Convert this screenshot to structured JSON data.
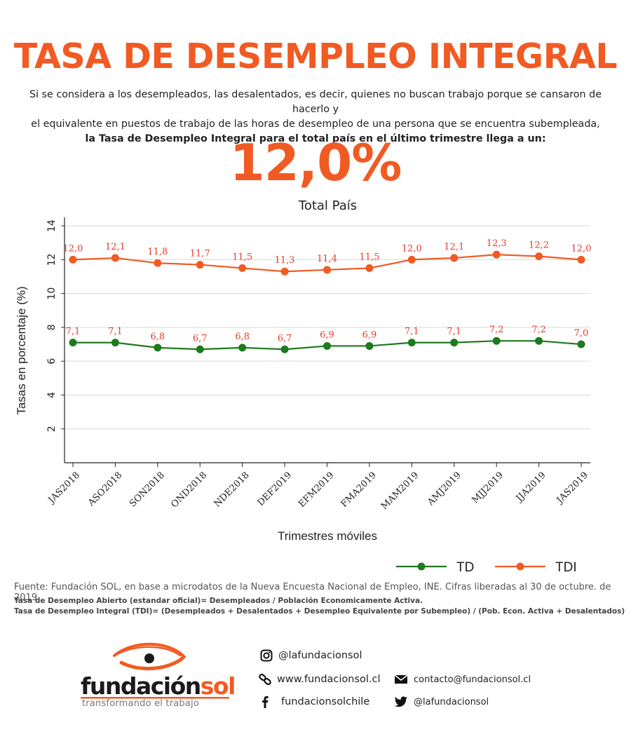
{
  "header": {
    "title": "TASA DE DESEMPLEO INTEGRAL",
    "intro_line1": "Si se considera a los desempleados, las desalentados, es decir, quienes no buscan trabajo porque se cansaron de hacerlo y",
    "intro_line2": "el equivalente en puestos  de trabajo de las horas de desempleo de una persona que se encuentra subempleada,",
    "intro_line3": "la Tasa de Desempleo Integral para el  total país en el último trimestre llega a un:",
    "big_value": "12,0%"
  },
  "chart_data": {
    "type": "line",
    "title": "Total País",
    "xlabel": "Trimestres móviles",
    "ylabel": "Tasas en porcentaje (%)",
    "ylim": [
      0,
      14.5
    ],
    "yticks": [
      2,
      4,
      6,
      8,
      10,
      12,
      14
    ],
    "grid": true,
    "legend_position": "bottom-right",
    "categories": [
      "JAS2018",
      "ASO2018",
      "SON2018",
      "OND2018",
      "NDE2018",
      "DEF2019",
      "EFM2019",
      "FMA2019",
      "MAM2019",
      "AMJ2019",
      "MJJ2019",
      "JJA2019",
      "JAS2019"
    ],
    "series": [
      {
        "name": "TD",
        "color": "#1e7a1e",
        "values": [
          7.1,
          7.1,
          6.8,
          6.7,
          6.8,
          6.7,
          6.9,
          6.9,
          7.1,
          7.1,
          7.2,
          7.2,
          7.0
        ],
        "labels": [
          "7,1",
          "7,1",
          "6,8",
          "6,7",
          "6,8",
          "6,7",
          "6,9",
          "6,9",
          "7,1",
          "7,1",
          "7,2",
          "7,2",
          "7,0"
        ]
      },
      {
        "name": "TDI",
        "color": "#f15a22",
        "values": [
          12.0,
          12.1,
          11.8,
          11.7,
          11.5,
          11.3,
          11.4,
          11.5,
          12.0,
          12.1,
          12.3,
          12.2,
          12.0
        ],
        "labels": [
          "12,0",
          "12,1",
          "11,8",
          "11,7",
          "11,5",
          "11,3",
          "11,4",
          "11,5",
          "12,0",
          "12,1",
          "12,3",
          "12,2",
          "12,0"
        ]
      }
    ],
    "data_label_color": "#e8372c"
  },
  "footer": {
    "source": "Fuente: Fundación SOL, en base a microdatos de la Nueva Encuesta Nacional de Empleo, INE. Cifras liberadas al 30 de octubre. de 2019.",
    "note1": "Tasa de Desempleo Abierto (estandar oficial)= Desempleados / Población Economicamente Activa.",
    "note2": "Tasa de Desempleo Integral (TDI)= (Desempleados + Desalentados + Desempleo Equivalente por Subempleo) / (Pob. Econ. Activa + Desalentados)"
  },
  "brand": {
    "name_part1": "fundación",
    "name_part2": "sol",
    "tagline": "transformando el trabajo",
    "accent_color": "#f15a22"
  },
  "contacts": {
    "instagram": "@lafundacionsol",
    "website": "www.fundacionsol.cl",
    "email": "contacto@fundacionsol.cl",
    "facebook": "fundacionsolchile",
    "twitter": "@lafundacionsol",
    "icons": [
      "instagram-icon",
      "link-icon",
      "mail-icon",
      "facebook-icon",
      "twitter-icon"
    ]
  }
}
